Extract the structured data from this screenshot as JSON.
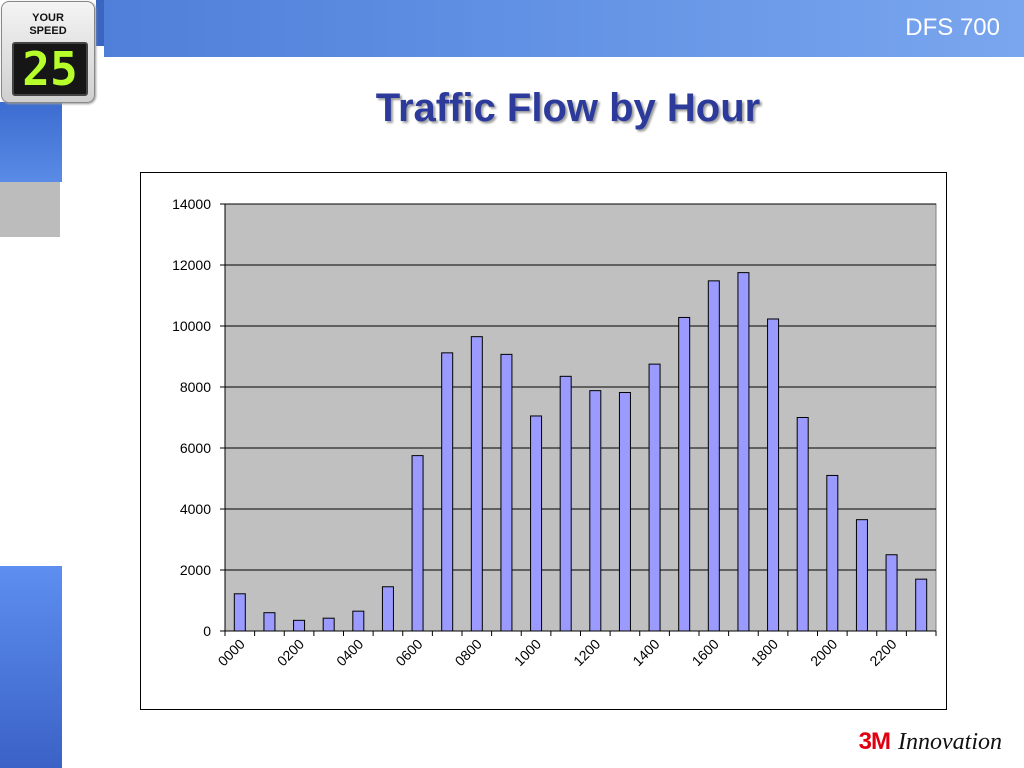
{
  "header": {
    "slide_code": "DFS 700"
  },
  "sign": {
    "line1": "YOUR",
    "line2": "SPEED",
    "speed": "25",
    "display_color": "#b6ff2a"
  },
  "title": "Traffic Flow by Hour",
  "footer": {
    "brand": "3M",
    "tagline": "Innovation",
    "brand_color": "#e10010"
  },
  "colors": {
    "bar_fill": "#9b9bff",
    "plot_bg": "#c0c0c0",
    "title": "#2b3a9b",
    "accent": "#5a8be6"
  },
  "chart_data": {
    "type": "bar",
    "title": "",
    "xlabel": "",
    "ylabel": "",
    "ylim": [
      0,
      14000
    ],
    "yticks": [
      0,
      2000,
      4000,
      6000,
      8000,
      10000,
      12000,
      14000
    ],
    "xtick_labels": [
      "0000",
      "0200",
      "0400",
      "0600",
      "0800",
      "1000",
      "1200",
      "1400",
      "1600",
      "1800",
      "2000",
      "2200"
    ],
    "categories": [
      "0000",
      "0100",
      "0200",
      "0300",
      "0400",
      "0500",
      "0600",
      "0700",
      "0800",
      "0900",
      "1000",
      "1100",
      "1200",
      "1300",
      "1400",
      "1500",
      "1600",
      "1700",
      "1800",
      "1900",
      "2000",
      "2100",
      "2200",
      "2300"
    ],
    "values": [
      1220,
      600,
      350,
      420,
      650,
      1450,
      5750,
      9120,
      9650,
      9070,
      7050,
      8350,
      7880,
      7820,
      8750,
      10280,
      11480,
      11750,
      10230,
      7000,
      5100,
      3650,
      2500,
      1700
    ],
    "grid": true,
    "legend": "none"
  }
}
